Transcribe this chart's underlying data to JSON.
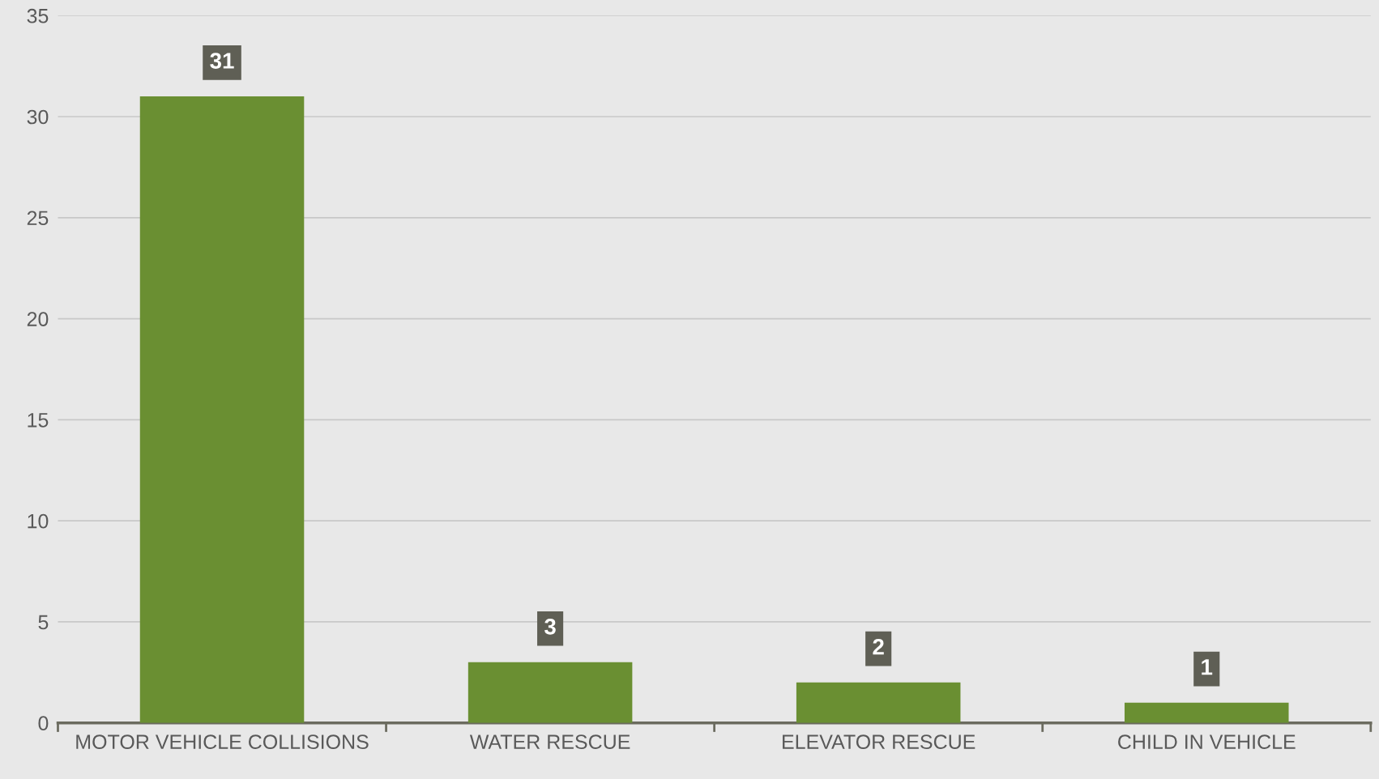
{
  "chart_data": {
    "type": "bar",
    "categories": [
      "MOTOR VEHICLE COLLISIONS",
      "WATER RESCUE",
      "ELEVATOR RESCUE",
      "CHILD IN VEHICLE"
    ],
    "values": [
      31,
      3,
      2,
      1
    ],
    "color": "#6a8f32",
    "ylim": [
      0,
      35
    ],
    "yticks": [
      0,
      5,
      10,
      15,
      20,
      25,
      30,
      35
    ],
    "grid": "y",
    "data_labels": true
  }
}
